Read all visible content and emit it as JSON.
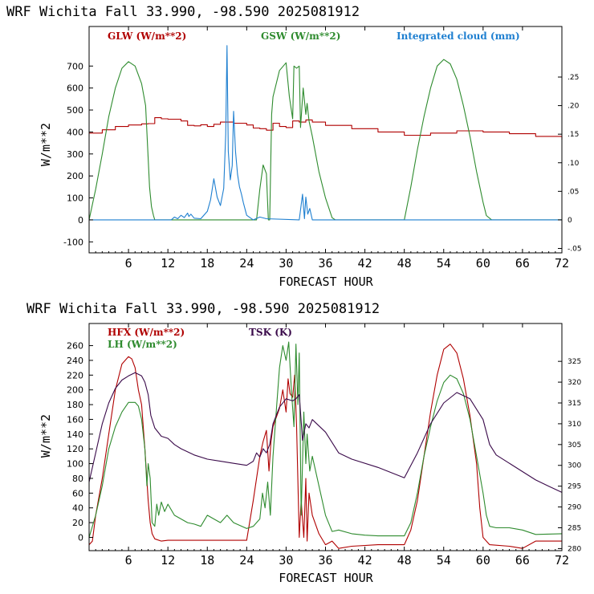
{
  "colors": {
    "red": "#b00000",
    "green": "#2e8b2e",
    "blue": "#1e7fd0",
    "purple": "#3a0a4a",
    "frame": "#000000"
  },
  "chart_data": [
    {
      "type": "line",
      "title": "WRF  Wichita Fall  33.990, -98.590  2025081912",
      "xlabel": "FORECAST HOUR",
      "ylabel": "W/m**2",
      "xlim": [
        0,
        72
      ],
      "ylim": [
        -150,
        880
      ],
      "y2lim": [
        -0.0577,
        0.3385
      ],
      "xticks": [
        6,
        12,
        18,
        24,
        30,
        36,
        42,
        48,
        54,
        60,
        66,
        72
      ],
      "yticks": [
        -100,
        0,
        100,
        200,
        300,
        400,
        500,
        600,
        700
      ],
      "y2ticks": [
        -0.05,
        0,
        0.05,
        0.1,
        0.15,
        0.2,
        0.25
      ],
      "y2ticklabels": [
        "-.05",
        "0",
        ".05",
        ".10",
        ".15",
        ".20",
        ".25"
      ],
      "legend": [
        {
          "label": "GLW (W/m**2)",
          "color": "#b00000",
          "position": "top-left"
        },
        {
          "label": "GSW (W/m**2)",
          "color": "#2e8b2e",
          "position": "top-center"
        },
        {
          "label": "Integrated cloud (mm)",
          "color": "#1e7fd0",
          "position": "top-right"
        }
      ],
      "series": [
        {
          "name": "GLW (W/m**2)",
          "axis": "left",
          "color": "#b00000",
          "step": true,
          "x": [
            0,
            2,
            4,
            6,
            8,
            9,
            10,
            11,
            12,
            14,
            15,
            16,
            17,
            18,
            19,
            20,
            22,
            24,
            25,
            26,
            27,
            28,
            29,
            30,
            31,
            32,
            33,
            34,
            36,
            40,
            44,
            48,
            52,
            56,
            60,
            64,
            68,
            72
          ],
          "y": [
            395,
            410,
            425,
            432,
            437,
            438,
            465,
            460,
            458,
            450,
            430,
            428,
            433,
            425,
            435,
            445,
            440,
            432,
            418,
            415,
            408,
            440,
            425,
            420,
            450,
            445,
            455,
            445,
            430,
            415,
            400,
            385,
            395,
            405,
            400,
            392,
            380,
            365
          ]
        },
        {
          "name": "GSW (W/m**2)",
          "axis": "left",
          "color": "#2e8b2e",
          "x": [
            0,
            1,
            2,
            3,
            4,
            5,
            6,
            7,
            8,
            8.6,
            9,
            9.2,
            9.5,
            9.8,
            10,
            25.5,
            26,
            26.5,
            27,
            27.3,
            27.5,
            27.8,
            28,
            29,
            30,
            30.5,
            31,
            31.2,
            31.6,
            32,
            32.2,
            32.6,
            33,
            33.2,
            33.5,
            34,
            35,
            36,
            37,
            37.5,
            48,
            49,
            50,
            51,
            52,
            53,
            54,
            55,
            56,
            57,
            58,
            59,
            60,
            60.5,
            61.3,
            72
          ],
          "y": [
            0,
            140,
            300,
            470,
            600,
            690,
            720,
            700,
            620,
            520,
            280,
            150,
            60,
            20,
            0,
            0,
            140,
            250,
            210,
            0,
            0,
            480,
            560,
            680,
            715,
            560,
            460,
            700,
            690,
            700,
            420,
            600,
            480,
            530,
            450,
            380,
            220,
            100,
            10,
            0,
            0,
            150,
            320,
            470,
            600,
            700,
            730,
            710,
            640,
            520,
            380,
            220,
            80,
            20,
            0,
            0
          ]
        },
        {
          "name": "Integrated cloud (mm)",
          "axis": "right",
          "color": "#1e7fd0",
          "x": [
            0,
            12.5,
            13,
            13.5,
            14,
            14.5,
            15,
            15.2,
            15.5,
            16,
            17,
            18,
            18.5,
            19,
            19.5,
            20,
            20.5,
            20.8,
            21,
            21.2,
            21.5,
            21.8,
            22,
            22.3,
            22.6,
            22.9,
            23.2,
            23.5,
            24,
            25,
            26,
            27,
            32,
            32.5,
            32.8,
            33,
            33.3,
            33.6,
            34,
            72
          ],
          "y": [
            0,
            0,
            0.005,
            0.002,
            0.008,
            0.004,
            0.012,
            0.006,
            0.01,
            0.003,
            0.002,
            0.015,
            0.035,
            0.072,
            0.04,
            0.025,
            0.055,
            0.15,
            0.305,
            0.12,
            0.07,
            0.095,
            0.19,
            0.12,
            0.08,
            0.058,
            0.045,
            0.03,
            0.008,
            0,
            0.005,
            0.002,
            0,
            0.045,
            0.002,
            0.04,
            0.01,
            0.02,
            0,
            0
          ]
        }
      ]
    },
    {
      "type": "line",
      "title": "WRF  Wichita Fall  33.990, -98.590  2025081912",
      "xlabel": "FORECAST HOUR",
      "ylabel": "W/m**2",
      "xlim": [
        0,
        72
      ],
      "ylim": [
        -18,
        290
      ],
      "y2lim": [
        279.5,
        334.1
      ],
      "xticks": [
        6,
        12,
        18,
        24,
        30,
        36,
        42,
        48,
        54,
        60,
        66,
        72
      ],
      "yticks": [
        0,
        20,
        40,
        60,
        80,
        100,
        120,
        140,
        160,
        180,
        200,
        220,
        240,
        260
      ],
      "y2ticks": [
        280,
        285,
        290,
        295,
        300,
        305,
        310,
        315,
        320,
        325
      ],
      "legend": [
        {
          "label": "HFX (W/m**2)",
          "color": "#b00000",
          "position": "top-left"
        },
        {
          "label": "LH  (W/m**2)",
          "color": "#2e8b2e",
          "position": "top-left"
        },
        {
          "label": "TSK (K)",
          "color": "#3a0a4a",
          "position": "top-center"
        }
      ],
      "series": [
        {
          "name": "HFX (W/m**2)",
          "axis": "left",
          "color": "#b00000",
          "x": [
            0,
            0.5,
            1,
            2,
            3,
            4,
            5,
            6,
            6.5,
            7,
            7.5,
            8,
            8.5,
            9,
            9.3,
            9.6,
            10,
            11,
            12,
            14,
            18,
            24,
            25,
            26,
            26.5,
            27,
            27.4,
            27.7,
            28,
            29,
            29.5,
            30,
            30.3,
            30.6,
            31,
            31.3,
            31.6,
            32,
            32.3,
            32.7,
            33,
            33.2,
            33.5,
            34,
            35,
            36,
            37,
            38,
            40,
            44,
            48,
            49,
            50,
            51,
            52,
            53,
            54,
            55,
            56,
            57,
            58,
            59,
            59.5,
            60,
            61,
            64,
            66,
            68,
            72
          ],
          "y": [
            -10,
            -5,
            30,
            80,
            140,
            200,
            235,
            245,
            242,
            230,
            200,
            180,
            120,
            50,
            20,
            5,
            -2,
            -5,
            -4,
            -4,
            -4,
            -4,
            50,
            110,
            130,
            145,
            90,
            130,
            150,
            175,
            200,
            170,
            215,
            195,
            190,
            220,
            150,
            0,
            50,
            0,
            80,
            -5,
            60,
            30,
            5,
            -10,
            -5,
            -15,
            -12,
            -10,
            -10,
            10,
            50,
            110,
            170,
            220,
            255,
            262,
            250,
            215,
            165,
            100,
            40,
            0,
            -10,
            -12,
            -15,
            -5,
            -5
          ]
        },
        {
          "name": "LH  (W/m**2)",
          "axis": "left",
          "color": "#2e8b2e",
          "x": [
            0,
            1,
            2,
            3,
            4,
            5,
            6,
            7,
            7.5,
            8,
            8.5,
            8.8,
            9,
            9.3,
            9.6,
            10,
            10.3,
            10.6,
            11,
            11.5,
            12,
            13,
            14,
            15,
            16,
            17,
            18,
            19,
            20,
            21,
            22,
            24,
            25,
            26,
            26.4,
            26.8,
            27.2,
            27.6,
            28,
            28.5,
            29,
            29.5,
            30,
            30.4,
            30.8,
            31.2,
            31.5,
            31.8,
            32,
            32.3,
            32.7,
            33,
            33.2,
            33.6,
            34,
            35,
            36,
            37,
            38,
            40,
            42,
            44,
            46,
            48,
            49,
            50,
            51,
            52,
            53,
            54,
            55,
            56,
            57,
            58,
            59,
            60,
            60.5,
            61,
            62,
            64,
            66,
            68,
            72
          ],
          "y": [
            0,
            30,
            70,
            120,
            150,
            170,
            183,
            183,
            178,
            160,
            120,
            70,
            100,
            80,
            20,
            15,
            45,
            30,
            48,
            35,
            45,
            30,
            25,
            20,
            18,
            15,
            30,
            25,
            20,
            30,
            20,
            12,
            15,
            25,
            60,
            40,
            75,
            30,
            110,
            170,
            230,
            260,
            240,
            265,
            200,
            150,
            262,
            180,
            250,
            30,
            170,
            100,
            140,
            90,
            110,
            70,
            30,
            8,
            10,
            5,
            3,
            2,
            2,
            2,
            20,
            60,
            110,
            150,
            185,
            210,
            220,
            215,
            195,
            160,
            110,
            60,
            30,
            15,
            13,
            13,
            10,
            4,
            5
          ]
        },
        {
          "name": "TSK (K)",
          "axis": "right",
          "color": "#3a0a4a",
          "x": [
            0,
            1,
            2,
            3,
            4,
            5,
            6,
            7,
            8,
            8.5,
            9,
            9.4,
            9.8,
            10,
            11,
            12,
            13,
            14,
            16,
            18,
            20,
            22,
            24,
            25,
            25.5,
            26,
            26.5,
            27,
            27.5,
            28,
            29,
            30,
            31,
            31.5,
            32,
            32.5,
            33,
            33.5,
            34,
            36,
            38,
            40,
            44,
            48,
            50,
            52,
            54,
            56,
            58,
            60,
            61,
            62,
            64,
            66,
            68,
            70,
            72
          ],
          "y": [
            296,
            303,
            310,
            315,
            318.5,
            320.5,
            321.5,
            322.3,
            321.5,
            320,
            317,
            312,
            310,
            309,
            307,
            306.5,
            305,
            304,
            302.5,
            301.5,
            301,
            300.5,
            300,
            301,
            303,
            302,
            304,
            303,
            305,
            310,
            314,
            316,
            315.5,
            316,
            317,
            306,
            310,
            309,
            311,
            308,
            303,
            301.5,
            299.5,
            297,
            303,
            310,
            315,
            317.5,
            316,
            311,
            305,
            302.5,
            300.5,
            298.5,
            296.5,
            295,
            293.5
          ]
        }
      ]
    }
  ]
}
